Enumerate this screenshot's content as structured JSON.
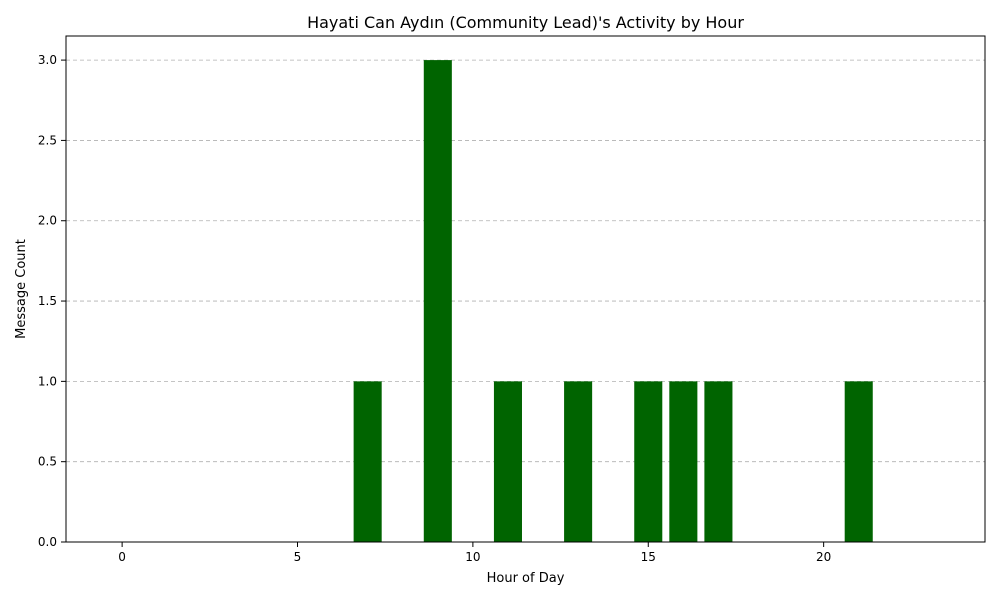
{
  "chart_data": {
    "type": "bar",
    "title": "Hayati Can Aydın (Community Lead)'s Activity by Hour",
    "xlabel": "Hour of Day",
    "ylabel": "Message Count",
    "x": [
      7,
      9,
      11,
      13,
      15,
      16,
      17,
      21
    ],
    "values": [
      1,
      3,
      1,
      1,
      1,
      1,
      1,
      1
    ],
    "xlim": [
      -1.6,
      24.6
    ],
    "ylim": [
      0,
      3.15
    ],
    "xticks": [
      0,
      5,
      10,
      15,
      20
    ],
    "yticks": [
      0.0,
      0.5,
      1.0,
      1.5,
      2.0,
      2.5,
      3.0
    ],
    "ytick_labels": [
      "0.0",
      "0.5",
      "1.0",
      "1.5",
      "2.0",
      "2.5",
      "3.0"
    ],
    "bar_width": 0.8,
    "bar_color": "#006400",
    "grid": "y-dashed",
    "legend": "none"
  }
}
